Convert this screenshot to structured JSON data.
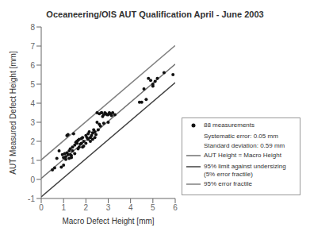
{
  "chart_data": {
    "type": "scatter",
    "title": "Oceaneering/OIS AUT Qualification April - June 2003",
    "xlabel": "Macro Defect Height [mm]",
    "ylabel": "AUT Measured Defect Height [mm]",
    "xlim": [
      0,
      6
    ],
    "ylim": [
      -1,
      8
    ],
    "xticks": [
      0,
      1,
      2,
      3,
      4,
      5,
      6
    ],
    "yticks": [
      -1,
      0,
      1,
      2,
      3,
      4,
      5,
      6,
      7,
      8
    ],
    "grid": false,
    "legend": "lower right",
    "annotations": [
      "Systematic error: 0.05 mm",
      "Standard deviation: 0.59 mm"
    ],
    "series": [
      {
        "name": "88 measurements",
        "type": "scatter",
        "marker": "circle",
        "color": "#111111",
        "x": [
          0.5,
          0.7,
          0.9,
          0.95,
          1.0,
          1.0,
          1.05,
          1.1,
          1.1,
          1.15,
          1.15,
          1.2,
          1.2,
          1.25,
          1.25,
          1.3,
          1.3,
          1.35,
          1.35,
          1.4,
          1.4,
          1.45,
          1.5,
          1.5,
          1.55,
          1.6,
          1.6,
          1.65,
          1.65,
          1.7,
          1.7,
          1.75,
          1.8,
          1.8,
          1.85,
          1.85,
          1.9,
          1.9,
          2.0,
          2.0,
          2.05,
          2.1,
          2.1,
          2.15,
          2.2,
          2.2,
          2.25,
          2.3,
          2.3,
          2.35,
          2.4,
          2.4,
          2.45,
          2.5,
          2.5,
          2.55,
          2.6,
          2.6,
          2.65,
          2.7,
          2.75,
          2.8,
          2.85,
          2.9,
          2.95,
          3.0,
          3.0,
          3.05,
          3.1,
          3.15,
          3.2,
          3.3,
          0.6,
          0.8,
          4.8,
          4.9,
          5.0,
          5.0,
          5.1,
          5.2,
          5.5,
          5.9,
          4.4,
          4.5,
          4.6,
          4.7,
          2.7,
          2.8
        ],
        "values": [
          0.5,
          1.1,
          0.65,
          1.3,
          0.75,
          1.15,
          1.35,
          1.05,
          1.2,
          1.4,
          2.3,
          1.3,
          2.35,
          1.5,
          1.1,
          1.3,
          1.6,
          1.15,
          1.25,
          1.5,
          1.7,
          2.4,
          1.35,
          1.8,
          1.95,
          1.9,
          2.0,
          1.6,
          2.05,
          1.7,
          2.1,
          1.85,
          1.9,
          2.15,
          1.7,
          2.2,
          1.75,
          2.0,
          2.3,
          1.9,
          2.2,
          2.1,
          2.4,
          2.5,
          2.0,
          2.2,
          2.3,
          2.1,
          2.45,
          2.6,
          2.2,
          2.5,
          2.35,
          3.0,
          3.5,
          2.6,
          2.9,
          3.45,
          2.8,
          3.5,
          3.3,
          2.95,
          3.5,
          3.45,
          3.4,
          3.4,
          3.0,
          3.5,
          3.45,
          3.35,
          3.5,
          3.4,
          0.6,
          1.5,
          5.3,
          5.2,
          4.9,
          5.0,
          5.15,
          5.3,
          5.6,
          5.5,
          4.05,
          4.05,
          4.75,
          4.2,
          3.5,
          3.4
        ]
      },
      {
        "name": "AUT Height = Macro Height",
        "type": "line",
        "color": "#707070",
        "x": [
          0,
          6
        ],
        "values": [
          0.05,
          6.05
        ]
      },
      {
        "name": "95% limit against undersizing\n(5% error fractile)",
        "type": "line",
        "color": "#404040",
        "x": [
          0,
          6
        ],
        "values": [
          -0.918,
          5.082
        ]
      },
      {
        "name": "95% error fractile",
        "type": "line",
        "color": "#808080",
        "x": [
          0,
          6
        ],
        "values": [
          1.028,
          7.028
        ]
      }
    ]
  }
}
